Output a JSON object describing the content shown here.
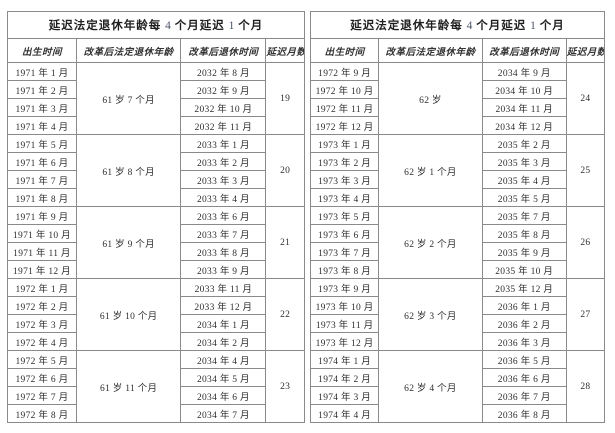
{
  "page": {
    "background": "#ffffff",
    "border_color": "#8a8a8a",
    "text_color": "#2e2e2e"
  },
  "tables": [
    {
      "id": "left",
      "title_parts": [
        {
          "text": "延迟法定退休年龄每 ",
          "kind": "cn"
        },
        {
          "text": "4",
          "kind": "num"
        },
        {
          "text": " 个月延迟 ",
          "kind": "cn"
        },
        {
          "text": "1",
          "kind": "num"
        },
        {
          "text": " 个月",
          "kind": "cn"
        }
      ],
      "headers": [
        "出生时间",
        "改革后法定退休年龄",
        "改革后退休时间",
        "延迟月数"
      ],
      "groups": [
        {
          "age": "61 岁 7 个月",
          "delay": "19",
          "rows": [
            {
              "birth": "1971 年 1 月",
              "retire": "2032 年 8 月"
            },
            {
              "birth": "1971 年 2 月",
              "retire": "2032 年 9 月"
            },
            {
              "birth": "1971 年 3 月",
              "retire": "2032 年 10 月"
            },
            {
              "birth": "1971 年 4 月",
              "retire": "2032 年 11 月"
            }
          ]
        },
        {
          "age": "61 岁 8 个月",
          "delay": "20",
          "rows": [
            {
              "birth": "1971 年 5 月",
              "retire": "2033 年 1 月"
            },
            {
              "birth": "1971 年 6 月",
              "retire": "2033 年 2 月"
            },
            {
              "birth": "1971 年 7 月",
              "retire": "2033 年 3 月"
            },
            {
              "birth": "1971 年 8 月",
              "retire": "2033 年 4 月"
            }
          ]
        },
        {
          "age": "61 岁 9 个月",
          "delay": "21",
          "rows": [
            {
              "birth": "1971 年 9 月",
              "retire": "2033 年 6 月"
            },
            {
              "birth": "1971 年 10 月",
              "retire": "2033 年 7 月"
            },
            {
              "birth": "1971 年 11 月",
              "retire": "2033 年 8 月"
            },
            {
              "birth": "1971 年 12 月",
              "retire": "2033 年 9 月"
            }
          ]
        },
        {
          "age": "61 岁 10 个月",
          "delay": "22",
          "rows": [
            {
              "birth": "1972 年 1 月",
              "retire": "2033 年 11 月"
            },
            {
              "birth": "1972 年 2 月",
              "retire": "2033 年 12 月"
            },
            {
              "birth": "1972 年 3 月",
              "retire": "2034 年 1 月"
            },
            {
              "birth": "1972 年 4 月",
              "retire": "2034 年 2 月"
            }
          ]
        },
        {
          "age": "61 岁 11 个月",
          "delay": "23",
          "rows": [
            {
              "birth": "1972 年 5 月",
              "retire": "2034 年 4 月"
            },
            {
              "birth": "1972 年 6 月",
              "retire": "2034 年 5 月"
            },
            {
              "birth": "1972 年 7 月",
              "retire": "2034 年 6 月"
            },
            {
              "birth": "1972 年 8 月",
              "retire": "2034 年 7 月"
            }
          ]
        }
      ]
    },
    {
      "id": "right",
      "title_parts": [
        {
          "text": "延迟法定退休年龄每 ",
          "kind": "cn"
        },
        {
          "text": "4",
          "kind": "num"
        },
        {
          "text": " 个月延迟 ",
          "kind": "cn"
        },
        {
          "text": "1",
          "kind": "num"
        },
        {
          "text": " 个月",
          "kind": "cn"
        }
      ],
      "headers": [
        "出生时间",
        "改革后法定退休年龄",
        "改革后退休时间",
        "延迟月数"
      ],
      "groups": [
        {
          "age": "62 岁",
          "delay": "24",
          "rows": [
            {
              "birth": "1972 年 9 月",
              "retire": "2034 年 9 月"
            },
            {
              "birth": "1972 年 10 月",
              "retire": "2034 年 10 月"
            },
            {
              "birth": "1972 年 11 月",
              "retire": "2034 年 11 月"
            },
            {
              "birth": "1972 年 12 月",
              "retire": "2034 年 12 月"
            }
          ]
        },
        {
          "age": "62 岁 1 个月",
          "delay": "25",
          "rows": [
            {
              "birth": "1973 年 1 月",
              "retire": "2035 年 2 月"
            },
            {
              "birth": "1973 年 2 月",
              "retire": "2035 年 3 月"
            },
            {
              "birth": "1973 年 3 月",
              "retire": "2035 年 4 月"
            },
            {
              "birth": "1973 年 4 月",
              "retire": "2035 年 5 月"
            }
          ]
        },
        {
          "age": "62 岁 2 个月",
          "delay": "26",
          "rows": [
            {
              "birth": "1973 年 5 月",
              "retire": "2035 年 7 月"
            },
            {
              "birth": "1973 年 6 月",
              "retire": "2035 年 8 月"
            },
            {
              "birth": "1973 年 7 月",
              "retire": "2035 年 9 月"
            },
            {
              "birth": "1973 年 8 月",
              "retire": "2035 年 10 月"
            }
          ]
        },
        {
          "age": "62 岁 3 个月",
          "delay": "27",
          "rows": [
            {
              "birth": "1973 年 9 月",
              "retire": "2035 年 12 月"
            },
            {
              "birth": "1973 年 10 月",
              "retire": "2036 年 1 月"
            },
            {
              "birth": "1973 年 11 月",
              "retire": "2036 年 2 月"
            },
            {
              "birth": "1973 年 12 月",
              "retire": "2036 年 3 月"
            }
          ]
        },
        {
          "age": "62 岁 4 个月",
          "delay": "28",
          "rows": [
            {
              "birth": "1974 年 1 月",
              "retire": "2036 年 5 月"
            },
            {
              "birth": "1974 年 2 月",
              "retire": "2036 年 6 月"
            },
            {
              "birth": "1974 年 3 月",
              "retire": "2036 年 7 月"
            },
            {
              "birth": "1974 年 4 月",
              "retire": "2036 年 8 月"
            }
          ]
        }
      ]
    }
  ]
}
